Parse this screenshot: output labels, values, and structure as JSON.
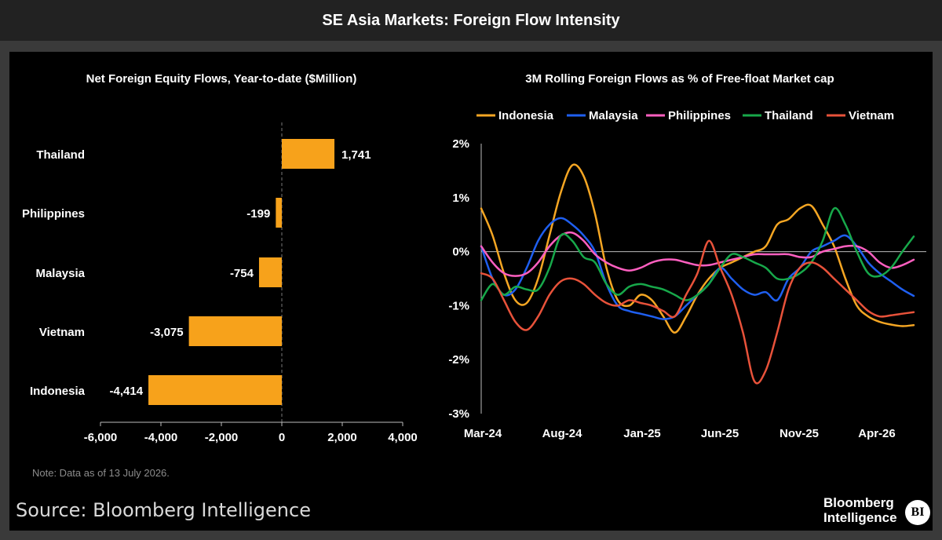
{
  "header": {
    "title": "SE Asia Markets: Foreign Flow Intensity"
  },
  "footer": {
    "source": "Source: Bloomberg Intelligence",
    "brand_line1": "Bloomberg",
    "brand_line2": "Intelligence",
    "brand_badge": "BI"
  },
  "chart_data": [
    {
      "type": "bar",
      "orientation": "horizontal",
      "title": "Net Foreign Equity Flows, Year-to-date ($Million)",
      "categories": [
        "Thailand",
        "Philippines",
        "Malaysia",
        "Vietnam",
        "Indonesia"
      ],
      "values": [
        1741,
        -199,
        -754,
        -3075,
        -4414
      ],
      "value_labels": [
        "1,741",
        "-199",
        "-754",
        "-3,075",
        "-4,414"
      ],
      "xlim": [
        -6000,
        4000
      ],
      "x_ticks": [
        -6000,
        -4000,
        -2000,
        0,
        2000,
        4000
      ],
      "x_tick_labels": [
        "-6,000",
        "-4,000",
        "-2,000",
        "0",
        "2,000",
        "4,000"
      ],
      "bar_color": "#f7a21b",
      "note": "Note: Data as of 13 July 2026."
    },
    {
      "type": "line",
      "title": "3M Rolling Foreign Flows as % of Free-float Market cap",
      "x_start": "Mar-24",
      "x_end": "Jun-26",
      "x_tick_labels": [
        "Mar-24",
        "Aug-24",
        "Jan-25",
        "Jun-25",
        "Nov-25",
        "Apr-26"
      ],
      "ylim": [
        -3,
        2
      ],
      "y_ticks": [
        2,
        1,
        0,
        -1,
        -2,
        -3
      ],
      "y_tick_labels": [
        "2%",
        "1%",
        "0%",
        "-1%",
        "-2%",
        "-3%"
      ],
      "legend_position": "top",
      "series": [
        {
          "name": "Indonesia",
          "color": "#f5a623",
          "values": [
            0.8,
            0.3,
            -0.4,
            -0.9,
            -0.95,
            -0.5,
            0.3,
            1.1,
            1.6,
            1.4,
            0.7,
            -0.3,
            -0.9,
            -1.0,
            -0.8,
            -0.9,
            -1.2,
            -1.5,
            -1.2,
            -0.8,
            -0.5,
            -0.3,
            -0.2,
            -0.1,
            0.0,
            0.1,
            0.5,
            0.6,
            0.8,
            0.85,
            0.5,
            0.1,
            -0.5,
            -1.0,
            -1.2,
            -1.3,
            -1.35,
            -1.38,
            -1.36
          ]
        },
        {
          "name": "Malaysia",
          "color": "#1f5ff0",
          "values": [
            0.1,
            -0.5,
            -0.8,
            -0.7,
            -0.3,
            0.2,
            0.5,
            0.62,
            0.5,
            0.3,
            0.0,
            -0.6,
            -1.0,
            -1.1,
            -1.15,
            -1.2,
            -1.25,
            -1.2,
            -1.0,
            -0.8,
            -0.6,
            -0.3,
            -0.5,
            -0.7,
            -0.8,
            -0.75,
            -0.9,
            -0.5,
            -0.3,
            0.0,
            0.1,
            0.2,
            0.3,
            0.1,
            -0.2,
            -0.4,
            -0.55,
            -0.7,
            -0.82
          ]
        },
        {
          "name": "Philippines",
          "color": "#ff5fc0",
          "values": [
            0.1,
            -0.2,
            -0.4,
            -0.45,
            -0.4,
            -0.2,
            0.1,
            0.3,
            0.35,
            0.2,
            -0.05,
            -0.2,
            -0.3,
            -0.35,
            -0.3,
            -0.2,
            -0.15,
            -0.15,
            -0.2,
            -0.25,
            -0.25,
            -0.2,
            -0.15,
            -0.1,
            -0.05,
            -0.05,
            -0.05,
            -0.05,
            -0.1,
            -0.1,
            0.0,
            0.05,
            0.1,
            0.1,
            0.0,
            -0.2,
            -0.3,
            -0.25,
            -0.15
          ]
        },
        {
          "name": "Thailand",
          "color": "#17a84a",
          "values": [
            -0.9,
            -0.6,
            -0.8,
            -0.65,
            -0.7,
            -0.7,
            -0.3,
            0.3,
            0.2,
            -0.1,
            -0.2,
            -0.6,
            -0.8,
            -0.65,
            -0.6,
            -0.65,
            -0.7,
            -0.8,
            -0.9,
            -0.8,
            -0.6,
            -0.3,
            -0.05,
            -0.1,
            -0.2,
            -0.3,
            -0.5,
            -0.5,
            -0.4,
            -0.2,
            0.2,
            0.8,
            0.5,
            0.0,
            -0.4,
            -0.45,
            -0.3,
            0.0,
            0.28
          ]
        },
        {
          "name": "Vietnam",
          "color": "#e8523a",
          "values": [
            -0.4,
            -0.5,
            -0.9,
            -1.3,
            -1.45,
            -1.2,
            -0.8,
            -0.55,
            -0.5,
            -0.6,
            -0.8,
            -0.95,
            -1.0,
            -0.9,
            -0.95,
            -1.0,
            -1.1,
            -1.2,
            -0.8,
            -0.4,
            0.2,
            -0.3,
            -0.8,
            -1.5,
            -2.4,
            -2.2,
            -1.5,
            -0.7,
            -0.3,
            -0.2,
            -0.3,
            -0.5,
            -0.7,
            -0.9,
            -1.1,
            -1.2,
            -1.18,
            -1.15,
            -1.12
          ]
        }
      ]
    }
  ]
}
